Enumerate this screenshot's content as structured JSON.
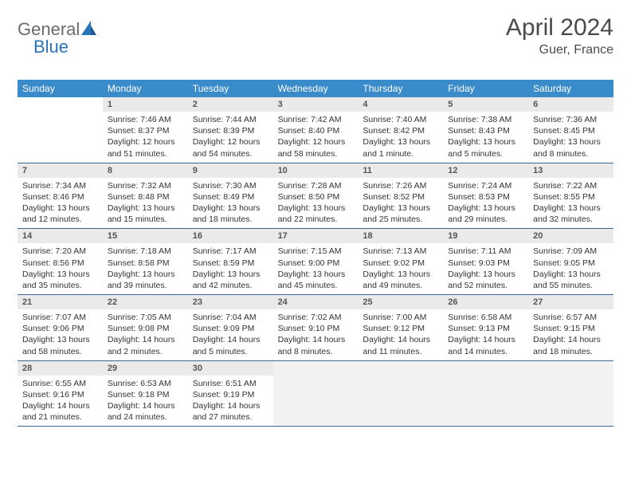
{
  "logo": {
    "part1": "General",
    "part2": "Blue"
  },
  "title": "April 2024",
  "location": "Guer, France",
  "colors": {
    "header_bg": "#3a8bc9",
    "header_text": "#ffffff",
    "daynum_bg": "#eaeaea",
    "daynum_text": "#555555",
    "body_text": "#333333",
    "week_border": "#3a6a94",
    "logo_gray": "#6b6b6b",
    "logo_blue": "#2874b8",
    "title_color": "#4a4a4a"
  },
  "dayNames": [
    "Sunday",
    "Monday",
    "Tuesday",
    "Wednesday",
    "Thursday",
    "Friday",
    "Saturday"
  ],
  "weeks": [
    [
      {
        "empty": true
      },
      {
        "day": "1",
        "sunrise": "Sunrise: 7:46 AM",
        "sunset": "Sunset: 8:37 PM",
        "daylight1": "Daylight: 12 hours",
        "daylight2": "and 51 minutes."
      },
      {
        "day": "2",
        "sunrise": "Sunrise: 7:44 AM",
        "sunset": "Sunset: 8:39 PM",
        "daylight1": "Daylight: 12 hours",
        "daylight2": "and 54 minutes."
      },
      {
        "day": "3",
        "sunrise": "Sunrise: 7:42 AM",
        "sunset": "Sunset: 8:40 PM",
        "daylight1": "Daylight: 12 hours",
        "daylight2": "and 58 minutes."
      },
      {
        "day": "4",
        "sunrise": "Sunrise: 7:40 AM",
        "sunset": "Sunset: 8:42 PM",
        "daylight1": "Daylight: 13 hours",
        "daylight2": "and 1 minute."
      },
      {
        "day": "5",
        "sunrise": "Sunrise: 7:38 AM",
        "sunset": "Sunset: 8:43 PM",
        "daylight1": "Daylight: 13 hours",
        "daylight2": "and 5 minutes."
      },
      {
        "day": "6",
        "sunrise": "Sunrise: 7:36 AM",
        "sunset": "Sunset: 8:45 PM",
        "daylight1": "Daylight: 13 hours",
        "daylight2": "and 8 minutes."
      }
    ],
    [
      {
        "day": "7",
        "sunrise": "Sunrise: 7:34 AM",
        "sunset": "Sunset: 8:46 PM",
        "daylight1": "Daylight: 13 hours",
        "daylight2": "and 12 minutes."
      },
      {
        "day": "8",
        "sunrise": "Sunrise: 7:32 AM",
        "sunset": "Sunset: 8:48 PM",
        "daylight1": "Daylight: 13 hours",
        "daylight2": "and 15 minutes."
      },
      {
        "day": "9",
        "sunrise": "Sunrise: 7:30 AM",
        "sunset": "Sunset: 8:49 PM",
        "daylight1": "Daylight: 13 hours",
        "daylight2": "and 18 minutes."
      },
      {
        "day": "10",
        "sunrise": "Sunrise: 7:28 AM",
        "sunset": "Sunset: 8:50 PM",
        "daylight1": "Daylight: 13 hours",
        "daylight2": "and 22 minutes."
      },
      {
        "day": "11",
        "sunrise": "Sunrise: 7:26 AM",
        "sunset": "Sunset: 8:52 PM",
        "daylight1": "Daylight: 13 hours",
        "daylight2": "and 25 minutes."
      },
      {
        "day": "12",
        "sunrise": "Sunrise: 7:24 AM",
        "sunset": "Sunset: 8:53 PM",
        "daylight1": "Daylight: 13 hours",
        "daylight2": "and 29 minutes."
      },
      {
        "day": "13",
        "sunrise": "Sunrise: 7:22 AM",
        "sunset": "Sunset: 8:55 PM",
        "daylight1": "Daylight: 13 hours",
        "daylight2": "and 32 minutes."
      }
    ],
    [
      {
        "day": "14",
        "sunrise": "Sunrise: 7:20 AM",
        "sunset": "Sunset: 8:56 PM",
        "daylight1": "Daylight: 13 hours",
        "daylight2": "and 35 minutes."
      },
      {
        "day": "15",
        "sunrise": "Sunrise: 7:18 AM",
        "sunset": "Sunset: 8:58 PM",
        "daylight1": "Daylight: 13 hours",
        "daylight2": "and 39 minutes."
      },
      {
        "day": "16",
        "sunrise": "Sunrise: 7:17 AM",
        "sunset": "Sunset: 8:59 PM",
        "daylight1": "Daylight: 13 hours",
        "daylight2": "and 42 minutes."
      },
      {
        "day": "17",
        "sunrise": "Sunrise: 7:15 AM",
        "sunset": "Sunset: 9:00 PM",
        "daylight1": "Daylight: 13 hours",
        "daylight2": "and 45 minutes."
      },
      {
        "day": "18",
        "sunrise": "Sunrise: 7:13 AM",
        "sunset": "Sunset: 9:02 PM",
        "daylight1": "Daylight: 13 hours",
        "daylight2": "and 49 minutes."
      },
      {
        "day": "19",
        "sunrise": "Sunrise: 7:11 AM",
        "sunset": "Sunset: 9:03 PM",
        "daylight1": "Daylight: 13 hours",
        "daylight2": "and 52 minutes."
      },
      {
        "day": "20",
        "sunrise": "Sunrise: 7:09 AM",
        "sunset": "Sunset: 9:05 PM",
        "daylight1": "Daylight: 13 hours",
        "daylight2": "and 55 minutes."
      }
    ],
    [
      {
        "day": "21",
        "sunrise": "Sunrise: 7:07 AM",
        "sunset": "Sunset: 9:06 PM",
        "daylight1": "Daylight: 13 hours",
        "daylight2": "and 58 minutes."
      },
      {
        "day": "22",
        "sunrise": "Sunrise: 7:05 AM",
        "sunset": "Sunset: 9:08 PM",
        "daylight1": "Daylight: 14 hours",
        "daylight2": "and 2 minutes."
      },
      {
        "day": "23",
        "sunrise": "Sunrise: 7:04 AM",
        "sunset": "Sunset: 9:09 PM",
        "daylight1": "Daylight: 14 hours",
        "daylight2": "and 5 minutes."
      },
      {
        "day": "24",
        "sunrise": "Sunrise: 7:02 AM",
        "sunset": "Sunset: 9:10 PM",
        "daylight1": "Daylight: 14 hours",
        "daylight2": "and 8 minutes."
      },
      {
        "day": "25",
        "sunrise": "Sunrise: 7:00 AM",
        "sunset": "Sunset: 9:12 PM",
        "daylight1": "Daylight: 14 hours",
        "daylight2": "and 11 minutes."
      },
      {
        "day": "26",
        "sunrise": "Sunrise: 6:58 AM",
        "sunset": "Sunset: 9:13 PM",
        "daylight1": "Daylight: 14 hours",
        "daylight2": "and 14 minutes."
      },
      {
        "day": "27",
        "sunrise": "Sunrise: 6:57 AM",
        "sunset": "Sunset: 9:15 PM",
        "daylight1": "Daylight: 14 hours",
        "daylight2": "and 18 minutes."
      }
    ],
    [
      {
        "day": "28",
        "sunrise": "Sunrise: 6:55 AM",
        "sunset": "Sunset: 9:16 PM",
        "daylight1": "Daylight: 14 hours",
        "daylight2": "and 21 minutes."
      },
      {
        "day": "29",
        "sunrise": "Sunrise: 6:53 AM",
        "sunset": "Sunset: 9:18 PM",
        "daylight1": "Daylight: 14 hours",
        "daylight2": "and 24 minutes."
      },
      {
        "day": "30",
        "sunrise": "Sunrise: 6:51 AM",
        "sunset": "Sunset: 9:19 PM",
        "daylight1": "Daylight: 14 hours",
        "daylight2": "and 27 minutes."
      },
      {
        "empty": true
      },
      {
        "empty": true
      },
      {
        "empty": true
      },
      {
        "empty": true
      }
    ]
  ]
}
